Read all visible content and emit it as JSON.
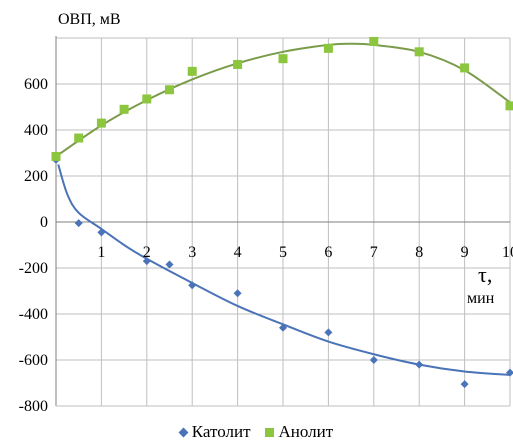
{
  "chart_data": {
    "type": "scatter",
    "ylabel": "ОВП, мВ",
    "xlabel_symbol": "τ,",
    "xlabel_unit": "мин",
    "x_ticks": [
      "1",
      "2",
      "3",
      "4",
      "5",
      "6",
      "7",
      "8",
      "9",
      "10"
    ],
    "y_ticks": [
      "-800",
      "-600",
      "-400",
      "-200",
      "0",
      "200",
      "400",
      "600"
    ],
    "xlim": [
      0,
      10
    ],
    "ylim": [
      -800,
      800
    ],
    "grid": true,
    "legend_position": "bottom",
    "series": [
      {
        "name": "Католит",
        "marker": "diamond",
        "color": "#4A73B8",
        "x": [
          0,
          0.5,
          1,
          2,
          2.5,
          3,
          4,
          5,
          6,
          7,
          8,
          9,
          10
        ],
        "y": [
          270,
          -5,
          -45,
          -170,
          -185,
          -275,
          -310,
          -460,
          -480,
          -600,
          -620,
          -705,
          -655
        ],
        "trend": {
          "kind": "logarithmic",
          "line_color": "#4A73B8",
          "x": [
            0.05,
            0.25,
            0.5,
            1,
            1.5,
            2,
            3,
            4,
            5,
            6,
            7,
            8,
            9,
            10
          ],
          "y": [
            250,
            120,
            40,
            -30,
            -100,
            -160,
            -265,
            -365,
            -445,
            -520,
            -575,
            -620,
            -650,
            -665
          ]
        }
      },
      {
        "name": "Анолит",
        "marker": "square",
        "color": "#8CC63F",
        "x": [
          0,
          0.5,
          1,
          1.5,
          2,
          2.5,
          3,
          4,
          5,
          6,
          7,
          8,
          9,
          10
        ],
        "y": [
          285,
          365,
          430,
          490,
          535,
          575,
          655,
          685,
          710,
          755,
          785,
          740,
          670,
          505
        ],
        "trend": {
          "kind": "polynomial",
          "line_color": "#7A9C4A",
          "x": [
            0,
            1,
            2,
            3,
            4,
            5,
            6,
            6.5,
            7,
            8,
            9,
            10
          ],
          "y": [
            285,
            420,
            530,
            620,
            690,
            740,
            770,
            775,
            770,
            740,
            660,
            520
          ]
        }
      }
    ]
  }
}
